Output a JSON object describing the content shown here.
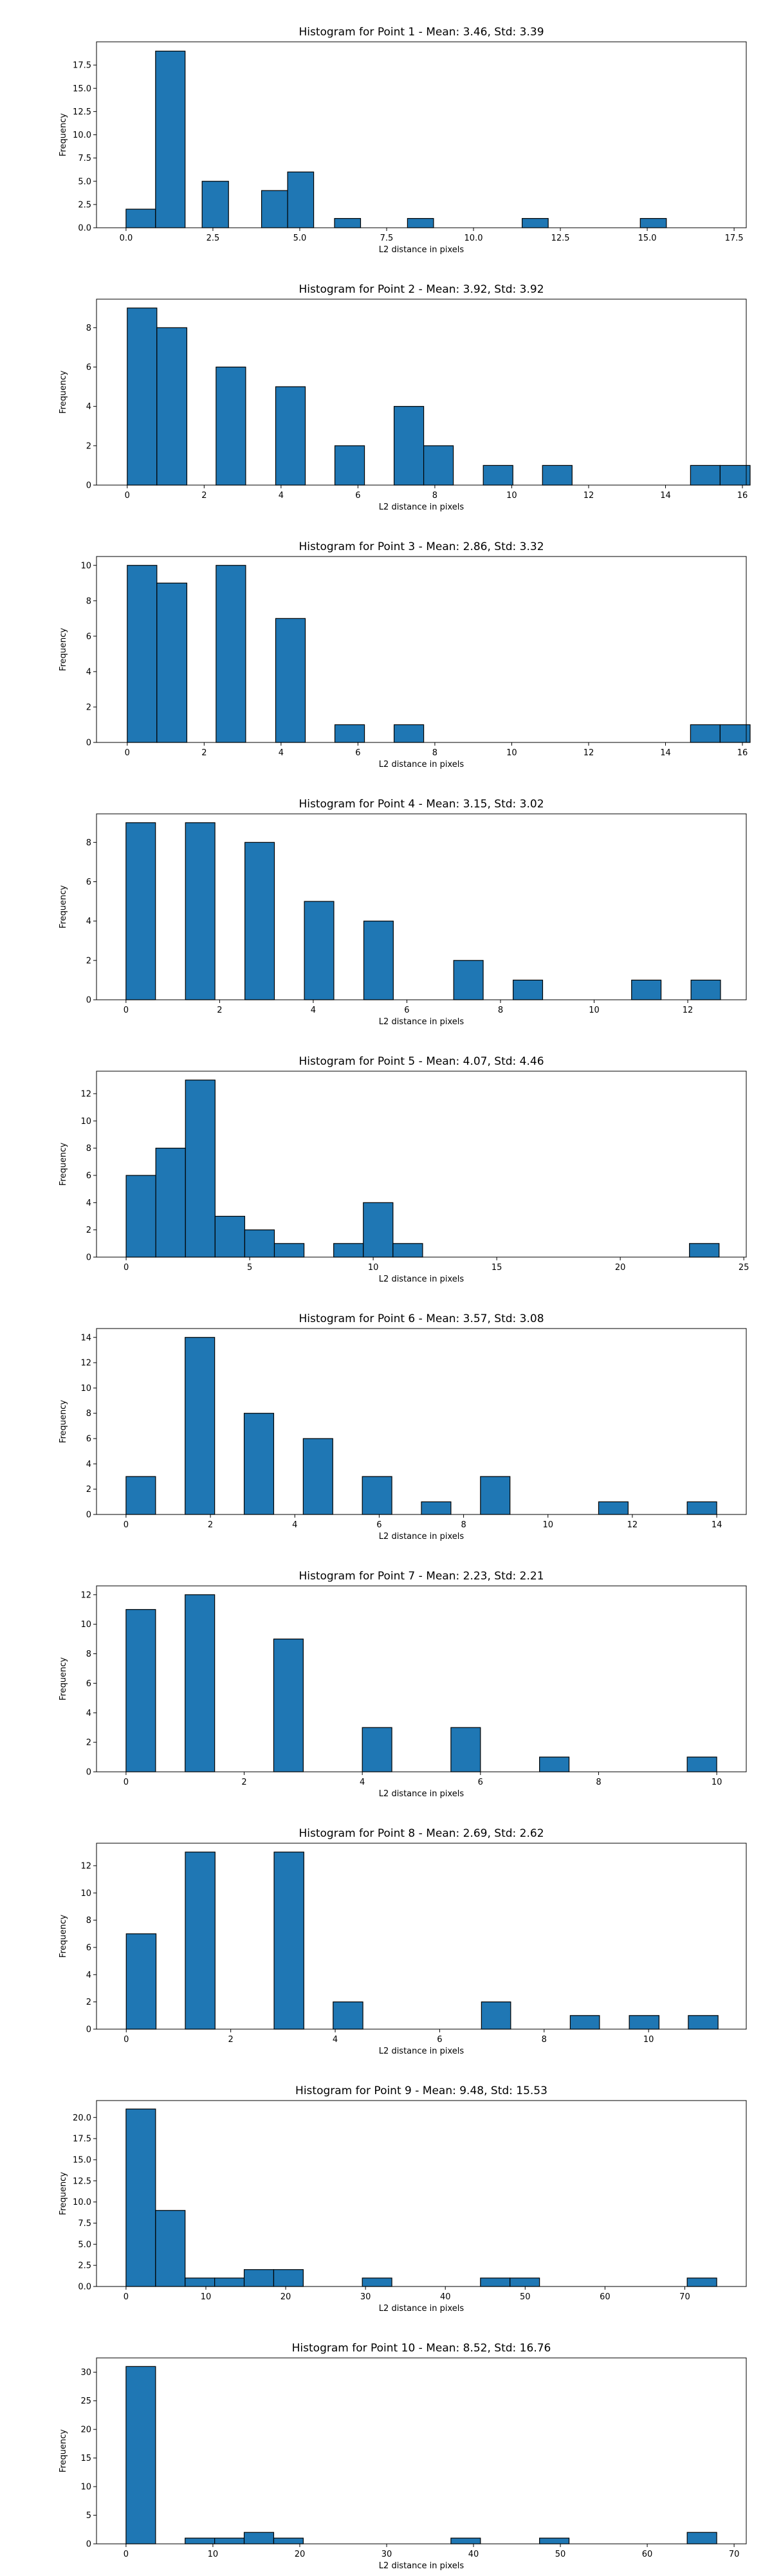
{
  "figure": {
    "bar_color": "#1f77b4",
    "edge_color": "#000000"
  },
  "chart_data": [
    {
      "type": "bar",
      "title": "Histogram for Point 1 - Mean: 3.46, Std: 3.39",
      "xlabel": "L2 distance in pixels",
      "ylabel": "Frequency",
      "xlim": [
        -0.85,
        17.85
      ],
      "ylim": [
        0,
        20
      ],
      "xticks": [
        0,
        2.5,
        5,
        7.5,
        10,
        12.5,
        15,
        17.5
      ],
      "xtick_labels": [
        "0.0",
        "2.5",
        "5.0",
        "7.5",
        "10.0",
        "12.5",
        "15.0",
        "17.5"
      ],
      "yticks": [
        0,
        2.5,
        5,
        7.5,
        10,
        12.5,
        15,
        17.5
      ],
      "ytick_labels": [
        "0.0",
        "2.5",
        "5.0",
        "7.5",
        "10.0",
        "12.5",
        "15.0",
        "17.5"
      ],
      "bins": [
        [
          0,
          0.85,
          2
        ],
        [
          0.85,
          1.7,
          19
        ],
        [
          2.19,
          2.95,
          5
        ],
        [
          3.9,
          4.65,
          4
        ],
        [
          4.65,
          5.4,
          6
        ],
        [
          6,
          6.75,
          1
        ],
        [
          8.1,
          8.85,
          1
        ],
        [
          11.4,
          12.15,
          1
        ],
        [
          14.8,
          15.55,
          1
        ]
      ]
    },
    {
      "type": "bar",
      "title": "Histogram for Point 2 - Mean: 3.92, Std: 3.92",
      "xlabel": "L2 distance in pixels",
      "ylabel": "Frequency",
      "xlim": [
        -0.8,
        16.1
      ],
      "ylim": [
        0,
        9.45
      ],
      "xticks": [
        0,
        2,
        4,
        6,
        8,
        10,
        12,
        14,
        16
      ],
      "xtick_labels": [
        "0",
        "2",
        "4",
        "6",
        "8",
        "10",
        "12",
        "14",
        "16"
      ],
      "yticks": [
        0,
        2,
        4,
        6,
        8
      ],
      "ytick_labels": [
        "0",
        "2",
        "4",
        "6",
        "8"
      ],
      "bins": [
        [
          0,
          0.77,
          9
        ],
        [
          0.77,
          1.55,
          8
        ],
        [
          2.31,
          3.08,
          6
        ],
        [
          3.86,
          4.63,
          5
        ],
        [
          5.4,
          6.17,
          2
        ],
        [
          6.94,
          7.71,
          4
        ],
        [
          7.71,
          8.48,
          2
        ],
        [
          9.26,
          10.03,
          1
        ],
        [
          10.8,
          11.57,
          1
        ],
        [
          14.65,
          15.42,
          1
        ],
        [
          15.42,
          16.2,
          1
        ]
      ]
    },
    {
      "type": "bar",
      "title": "Histogram for Point 3 - Mean: 2.86, Std: 3.32",
      "xlabel": "L2 distance in pixels",
      "ylabel": "Frequency",
      "xlim": [
        -0.8,
        16.1
      ],
      "ylim": [
        0,
        10.5
      ],
      "xticks": [
        0,
        2,
        4,
        6,
        8,
        10,
        12,
        14,
        16
      ],
      "xtick_labels": [
        "0",
        "2",
        "4",
        "6",
        "8",
        "10",
        "12",
        "14",
        "16"
      ],
      "yticks": [
        0,
        2,
        4,
        6,
        8,
        10
      ],
      "ytick_labels": [
        "0",
        "2",
        "4",
        "6",
        "8",
        "10"
      ],
      "bins": [
        [
          0,
          0.77,
          10
        ],
        [
          0.77,
          1.55,
          9
        ],
        [
          2.31,
          3.08,
          10
        ],
        [
          3.86,
          4.63,
          7
        ],
        [
          5.4,
          6.17,
          1
        ],
        [
          6.94,
          7.71,
          1
        ],
        [
          14.65,
          15.42,
          1
        ],
        [
          15.42,
          16.2,
          1
        ]
      ]
    },
    {
      "type": "bar",
      "title": "Histogram for Point 4 - Mean: 3.15, Std: 3.02",
      "xlabel": "L2 distance in pixels",
      "ylabel": "Frequency",
      "xlim": [
        -0.63,
        13.25
      ],
      "ylim": [
        0,
        9.45
      ],
      "xticks": [
        0,
        2,
        4,
        6,
        8,
        10,
        12
      ],
      "xtick_labels": [
        "0",
        "2",
        "4",
        "6",
        "8",
        "10",
        "12"
      ],
      "yticks": [
        0,
        2,
        4,
        6,
        8
      ],
      "ytick_labels": [
        "0",
        "2",
        "4",
        "6",
        "8"
      ],
      "bins": [
        [
          0,
          0.63,
          9
        ],
        [
          1.27,
          1.9,
          9
        ],
        [
          2.54,
          3.17,
          8
        ],
        [
          3.81,
          4.44,
          5
        ],
        [
          5.08,
          5.71,
          4
        ],
        [
          7.0,
          7.63,
          2
        ],
        [
          8.27,
          8.9,
          1
        ],
        [
          10.8,
          11.43,
          1
        ],
        [
          12.07,
          12.7,
          1
        ]
      ]
    },
    {
      "type": "bar",
      "title": "Histogram for Point 5 - Mean: 4.07, Std: 4.46",
      "xlabel": "L2 distance in pixels",
      "ylabel": "Frequency",
      "xlim": [
        -1.2,
        25.1
      ],
      "ylim": [
        0,
        13.65
      ],
      "xticks": [
        0,
        5,
        10,
        15,
        20,
        25
      ],
      "xtick_labels": [
        "0",
        "5",
        "10",
        "15",
        "20",
        "25"
      ],
      "yticks": [
        0,
        2,
        4,
        6,
        8,
        10,
        12
      ],
      "ytick_labels": [
        "0",
        "2",
        "4",
        "6",
        "8",
        "10",
        "12"
      ],
      "bins": [
        [
          0,
          1.2,
          6
        ],
        [
          1.2,
          2.4,
          8
        ],
        [
          2.4,
          3.6,
          13
        ],
        [
          3.6,
          4.8,
          3
        ],
        [
          4.8,
          6.0,
          2
        ],
        [
          6.0,
          7.2,
          1
        ],
        [
          8.4,
          9.6,
          1
        ],
        [
          9.6,
          10.8,
          4
        ],
        [
          10.8,
          12.0,
          1
        ],
        [
          22.8,
          24.0,
          1
        ]
      ]
    },
    {
      "type": "bar",
      "title": "Histogram for Point 6 - Mean: 3.57, Std: 3.08",
      "xlabel": "L2 distance in pixels",
      "ylabel": "Frequency",
      "xlim": [
        -0.7,
        14.7
      ],
      "ylim": [
        0,
        14.7
      ],
      "xticks": [
        0,
        2,
        4,
        6,
        8,
        10,
        12,
        14
      ],
      "xtick_labels": [
        "0",
        "2",
        "4",
        "6",
        "8",
        "10",
        "12",
        "14"
      ],
      "yticks": [
        0,
        2,
        4,
        6,
        8,
        10,
        12,
        14
      ],
      "ytick_labels": [
        "0",
        "2",
        "4",
        "6",
        "8",
        "10",
        "12",
        "14"
      ],
      "bins": [
        [
          0,
          0.7,
          3
        ],
        [
          1.4,
          2.1,
          14
        ],
        [
          2.8,
          3.5,
          8
        ],
        [
          4.2,
          4.9,
          6
        ],
        [
          5.6,
          6.3,
          3
        ],
        [
          7.0,
          7.7,
          1
        ],
        [
          8.4,
          9.1,
          3
        ],
        [
          11.2,
          11.9,
          1
        ],
        [
          13.3,
          14.0,
          1
        ]
      ]
    },
    {
      "type": "bar",
      "title": "Histogram for Point 7 - Mean: 2.23, Std: 2.21",
      "xlabel": "L2 distance in pixels",
      "ylabel": "Frequency",
      "xlim": [
        -0.5,
        10.5
      ],
      "ylim": [
        0,
        12.6
      ],
      "xticks": [
        0,
        2,
        4,
        6,
        8,
        10
      ],
      "xtick_labels": [
        "0",
        "2",
        "4",
        "6",
        "8",
        "10"
      ],
      "yticks": [
        0,
        2,
        4,
        6,
        8,
        10,
        12
      ],
      "ytick_labels": [
        "0",
        "2",
        "4",
        "6",
        "8",
        "10",
        "12"
      ],
      "bins": [
        [
          0,
          0.5,
          11
        ],
        [
          1.0,
          1.5,
          12
        ],
        [
          2.5,
          3.0,
          9
        ],
        [
          4.0,
          4.5,
          3
        ],
        [
          5.5,
          6.0,
          3
        ],
        [
          7.0,
          7.5,
          1
        ],
        [
          9.5,
          10.0,
          1
        ]
      ]
    },
    {
      "type": "bar",
      "title": "Histogram for Point 8 - Mean: 2.69, Std: 2.62",
      "xlabel": "L2 distance in pixels",
      "ylabel": "Frequency",
      "xlim": [
        -0.57,
        11.87
      ],
      "ylim": [
        0,
        13.65
      ],
      "xticks": [
        0,
        2,
        4,
        6,
        8,
        10
      ],
      "xtick_labels": [
        "0",
        "2",
        "4",
        "6",
        "8",
        "10"
      ],
      "yticks": [
        0,
        2,
        4,
        6,
        8,
        10,
        12
      ],
      "ytick_labels": [
        "0",
        "2",
        "4",
        "6",
        "8",
        "10",
        "12"
      ],
      "bins": [
        [
          0,
          0.57,
          7
        ],
        [
          1.13,
          1.7,
          13
        ],
        [
          2.83,
          3.4,
          13
        ],
        [
          3.96,
          4.53,
          2
        ],
        [
          6.8,
          7.36,
          2
        ],
        [
          8.5,
          9.06,
          1
        ],
        [
          9.63,
          10.2,
          1
        ],
        [
          10.76,
          11.33,
          1
        ]
      ]
    },
    {
      "type": "bar",
      "title": "Histogram for Point 9 - Mean: 9.48, Std: 15.53",
      "xlabel": "L2 distance in pixels",
      "ylabel": "Frequency",
      "xlim": [
        -3.7,
        77.7
      ],
      "ylim": [
        0,
        22
      ],
      "xticks": [
        0,
        10,
        20,
        30,
        40,
        50,
        60,
        70
      ],
      "xtick_labels": [
        "0",
        "10",
        "20",
        "30",
        "40",
        "50",
        "60",
        "70"
      ],
      "yticks": [
        0,
        2.5,
        5,
        7.5,
        10,
        12.5,
        15,
        17.5,
        20
      ],
      "ytick_labels": [
        "0.0",
        "2.5",
        "5.0",
        "7.5",
        "10.0",
        "12.5",
        "15.0",
        "17.5",
        "20.0"
      ],
      "bins": [
        [
          0,
          3.7,
          21
        ],
        [
          3.7,
          7.4,
          9
        ],
        [
          7.4,
          11.1,
          1
        ],
        [
          11.1,
          14.8,
          1
        ],
        [
          14.8,
          18.5,
          2
        ],
        [
          18.5,
          22.2,
          2
        ],
        [
          29.6,
          33.3,
          1
        ],
        [
          44.4,
          48.1,
          1
        ],
        [
          48.1,
          51.8,
          1
        ],
        [
          70.3,
          74.0,
          1
        ]
      ]
    },
    {
      "type": "bar",
      "title": "Histogram for Point 10 - Mean: 8.52, Std: 16.76",
      "xlabel": "L2 distance in pixels",
      "ylabel": "Frequency",
      "xlim": [
        -3.4,
        71.4
      ],
      "ylim": [
        0,
        32.5
      ],
      "xticks": [
        0,
        10,
        20,
        30,
        40,
        50,
        60,
        70
      ],
      "xtick_labels": [
        "0",
        "10",
        "20",
        "30",
        "40",
        "50",
        "60",
        "70"
      ],
      "yticks": [
        0,
        5,
        10,
        15,
        20,
        25,
        30
      ],
      "ytick_labels": [
        "0",
        "5",
        "10",
        "15",
        "20",
        "25",
        "30"
      ],
      "bins": [
        [
          0,
          3.4,
          31
        ],
        [
          6.8,
          10.2,
          1
        ],
        [
          10.2,
          13.6,
          1
        ],
        [
          13.6,
          17.0,
          2
        ],
        [
          17.0,
          20.4,
          1
        ],
        [
          37.4,
          40.8,
          1
        ],
        [
          47.6,
          51.0,
          1
        ],
        [
          64.6,
          68.0,
          2
        ]
      ]
    }
  ]
}
